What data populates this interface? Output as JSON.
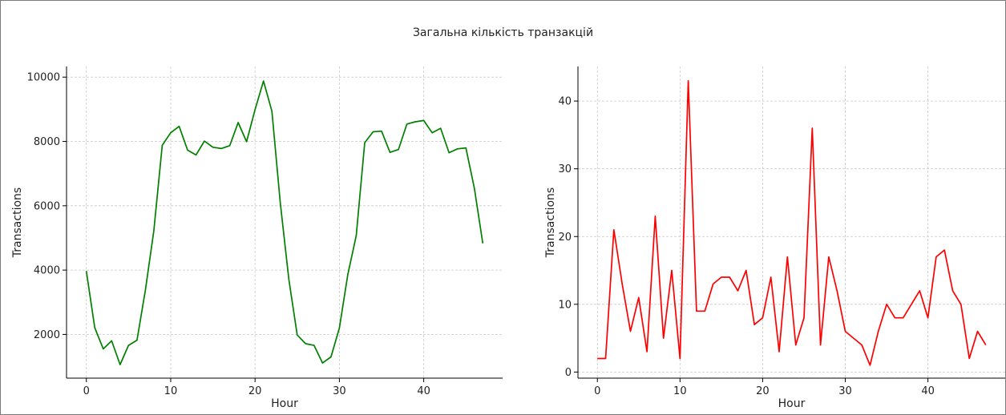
{
  "suptitle": "Загальна кількість транзакцій",
  "chart_data": [
    {
      "type": "line",
      "xlabel": "Hour",
      "ylabel": "Transactions",
      "xlim": [
        -2.35,
        49.35
      ],
      "ylim": [
        640,
        10330
      ],
      "xticks": [
        0,
        10,
        20,
        30,
        40
      ],
      "yticks": [
        2000,
        4000,
        6000,
        8000,
        10000
      ],
      "grid": true,
      "color": "#008000",
      "series": [
        {
          "x": [
            0,
            1,
            2,
            3,
            4,
            5,
            6,
            7,
            8,
            9,
            10,
            11,
            12,
            13,
            14,
            15,
            16,
            17,
            18,
            19,
            20,
            21,
            22,
            23,
            24,
            25,
            26,
            27,
            28,
            29,
            30,
            31,
            32,
            33,
            34,
            35,
            36,
            37,
            38,
            39,
            40,
            41,
            42,
            43,
            44,
            45,
            46,
            47
          ],
          "values": [
            3970,
            2210,
            1550,
            1800,
            1060,
            1660,
            1820,
            3380,
            5220,
            7880,
            8270,
            8470,
            7730,
            7580,
            8010,
            7820,
            7780,
            7870,
            8590,
            7990,
            8990,
            9880,
            8940,
            6080,
            3720,
            1980,
            1710,
            1660,
            1110,
            1300,
            2200,
            3860,
            5070,
            7960,
            8300,
            8320,
            7660,
            7750,
            8540,
            8610,
            8650,
            8270,
            8410,
            7650,
            7770,
            7800,
            6540,
            4830
          ]
        }
      ]
    },
    {
      "type": "line",
      "xlabel": "Hour",
      "ylabel": "Transactions",
      "xlim": [
        -2.35,
        49.35
      ],
      "ylim": [
        -0.9,
        45.1
      ],
      "xticks": [
        0,
        10,
        20,
        30,
        40
      ],
      "yticks": [
        0,
        10,
        20,
        30,
        40
      ],
      "grid": true,
      "color": "#ff0000",
      "series": [
        {
          "x": [
            0,
            1,
            2,
            3,
            4,
            5,
            6,
            7,
            8,
            9,
            10,
            11,
            12,
            13,
            14,
            15,
            16,
            17,
            18,
            19,
            20,
            21,
            22,
            23,
            24,
            25,
            26,
            27,
            28,
            29,
            30,
            31,
            32,
            33,
            34,
            35,
            36,
            37,
            38,
            39,
            40,
            41,
            42,
            43,
            44,
            45,
            46,
            47
          ],
          "values": [
            2,
            2,
            21,
            13,
            6,
            11,
            3,
            23,
            5,
            15,
            2,
            43,
            9,
            9,
            13,
            14,
            14,
            12,
            15,
            7,
            8,
            14,
            3,
            17,
            4,
            8,
            36,
            4,
            17,
            12,
            6,
            5,
            4,
            1,
            6,
            10,
            8,
            8,
            10,
            12,
            8,
            17,
            18,
            12,
            10,
            2,
            6,
            4
          ]
        }
      ]
    }
  ]
}
